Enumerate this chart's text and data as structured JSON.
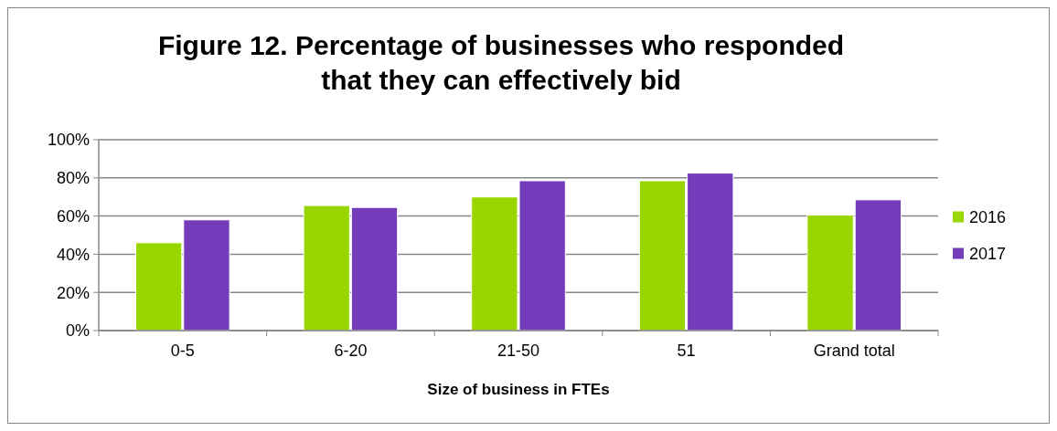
{
  "chart_data": {
    "type": "bar",
    "title": "Figure 12. Percentage of businesses who responded that they can effectively bid",
    "xlabel": "Size of business in FTEs",
    "categories": [
      "0-5",
      "6-20",
      "21-50",
      "51",
      "Grand total"
    ],
    "series": [
      {
        "name": "2016",
        "color": "#99d600",
        "values": [
          46,
          65.5,
          70,
          78.5,
          60.5
        ]
      },
      {
        "name": "2017",
        "color": "#743bbb",
        "values": [
          58,
          64.5,
          78.5,
          82.5,
          68.5
        ]
      }
    ],
    "ylim": [
      0,
      100
    ],
    "yticks": [
      {
        "value": 0,
        "label": "0%"
      },
      {
        "value": 20,
        "label": "20%"
      },
      {
        "value": 40,
        "label": "40%"
      },
      {
        "value": 60,
        "label": "60%"
      },
      {
        "value": 80,
        "label": "80%"
      },
      {
        "value": 100,
        "label": "100%"
      }
    ],
    "grid": "y",
    "legend": "right"
  }
}
